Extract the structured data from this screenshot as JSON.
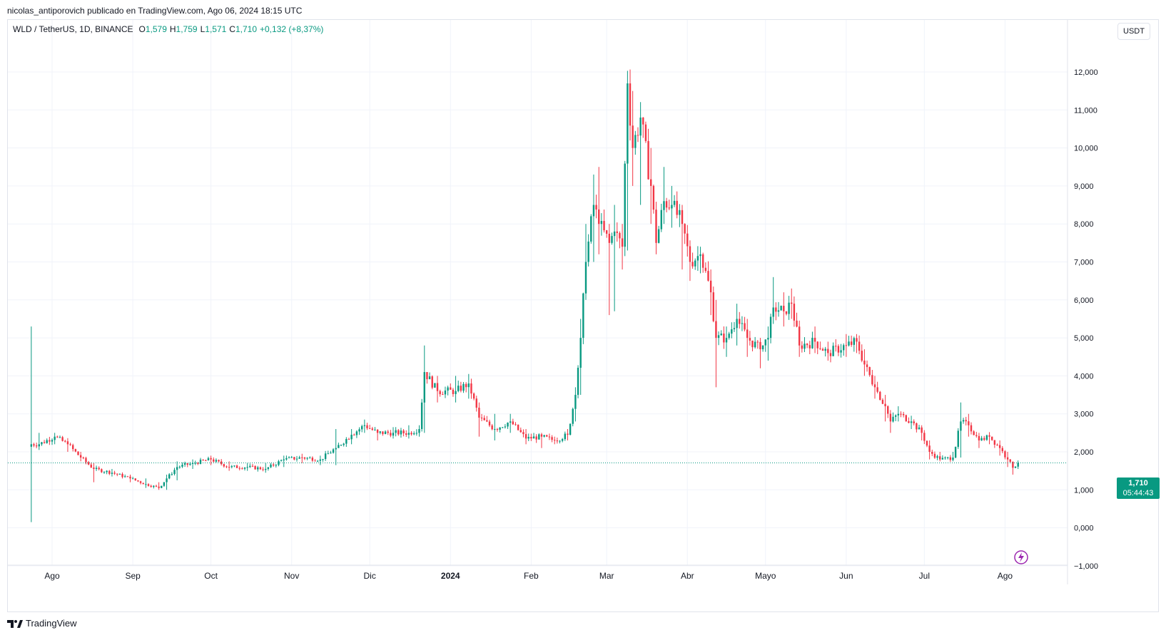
{
  "header": {
    "published_by": "nicolas_antiporovich publicado en TradingView.com, Ago 06, 2024 18:15 UTC"
  },
  "legend": {
    "symbol": "WLD / TetherUS, 1D, BINANCE",
    "open_label": "O",
    "open": "1,579",
    "high_label": "H",
    "high": "1,759",
    "low_label": "L",
    "low": "1,571",
    "close_label": "C",
    "close": "1,710",
    "change": "+0,132 (+8,37%)"
  },
  "currency_button": "USDT",
  "last_price": {
    "value": "1,710",
    "countdown": "05:44:43"
  },
  "footer": {
    "brand": "TradingView"
  },
  "colors": {
    "up": "#089981",
    "down": "#f23645",
    "grid": "#f0f3fa",
    "price_line": "#089981"
  },
  "icons": {
    "footer": "tradingview-logo-icon",
    "event": "lightning-icon"
  },
  "chart_data": {
    "type": "candlestick",
    "symbol": "WLD / TetherUS",
    "interval": "1D",
    "exchange": "BINANCE",
    "currency": "USDT",
    "ylim": [
      -1.0,
      12.5
    ],
    "y_ticks": [
      "12,000",
      "11,000",
      "10,000",
      "9,000",
      "8,000",
      "7,000",
      "6,000",
      "5,000",
      "4,000",
      "3,000",
      "2,000",
      "1,000",
      "0,000",
      "−1,000"
    ],
    "y_tick_values": [
      12,
      11,
      10,
      9,
      8,
      7,
      6,
      5,
      4,
      3,
      2,
      1,
      0,
      -1
    ],
    "x_ticks": [
      "Ago",
      "Sep",
      "Oct",
      "Nov",
      "Dic",
      "2024",
      "Feb",
      "Mar",
      "Abr",
      "Mayo",
      "Jun",
      "Jul",
      "Ago"
    ],
    "x_tick_dates": [
      "2023-08-01",
      "2023-09-01",
      "2023-10-01",
      "2023-11-01",
      "2023-12-01",
      "2024-01-01",
      "2024-02-01",
      "2024-03-01",
      "2024-04-01",
      "2024-05-01",
      "2024-06-01",
      "2024-07-01",
      "2024-08-01"
    ],
    "x_range": [
      "2023-07-15",
      "2024-08-25"
    ],
    "last_close": 1.71,
    "grid": true,
    "close_path": [
      {
        "date": "2023-07-24",
        "close": 2.2,
        "high": 5.3,
        "low": 0.15
      },
      {
        "date": "2023-07-27",
        "close": 2.2,
        "high": 2.5,
        "low": 2.05
      },
      {
        "date": "2023-08-02",
        "close": 2.4,
        "high": 2.5,
        "low": 2.2
      },
      {
        "date": "2023-08-07",
        "close": 2.2,
        "high": 2.35,
        "low": 2.0
      },
      {
        "date": "2023-08-12",
        "close": 1.85,
        "high": 2.0,
        "low": 1.75
      },
      {
        "date": "2023-08-17",
        "close": 1.55,
        "high": 1.7,
        "low": 1.2
      },
      {
        "date": "2023-08-24",
        "close": 1.45,
        "high": 1.55,
        "low": 1.35
      },
      {
        "date": "2023-08-31",
        "close": 1.3,
        "high": 1.4,
        "low": 1.2
      },
      {
        "date": "2023-09-06",
        "close": 1.15,
        "high": 1.3,
        "low": 1.05
      },
      {
        "date": "2023-09-11",
        "close": 1.05,
        "high": 1.2,
        "low": 1.0
      },
      {
        "date": "2023-09-14",
        "close": 1.3,
        "high": 1.4,
        "low": 1.0
      },
      {
        "date": "2023-09-18",
        "close": 1.6,
        "high": 1.75,
        "low": 1.25
      },
      {
        "date": "2023-09-24",
        "close": 1.7,
        "high": 1.8,
        "low": 1.55
      },
      {
        "date": "2023-10-01",
        "close": 1.8,
        "high": 1.9,
        "low": 1.65
      },
      {
        "date": "2023-10-08",
        "close": 1.6,
        "high": 1.75,
        "low": 1.5
      },
      {
        "date": "2023-10-15",
        "close": 1.6,
        "high": 1.7,
        "low": 1.5
      },
      {
        "date": "2023-10-22",
        "close": 1.55,
        "high": 1.7,
        "low": 1.45
      },
      {
        "date": "2023-10-29",
        "close": 1.8,
        "high": 1.9,
        "low": 1.6
      },
      {
        "date": "2023-11-05",
        "close": 1.85,
        "high": 1.95,
        "low": 1.7
      },
      {
        "date": "2023-11-12",
        "close": 1.8,
        "high": 1.9,
        "low": 1.65
      },
      {
        "date": "2023-11-18",
        "close": 2.1,
        "high": 2.6,
        "low": 1.65
      },
      {
        "date": "2023-11-24",
        "close": 2.45,
        "high": 2.6,
        "low": 2.2
      },
      {
        "date": "2023-11-29",
        "close": 2.7,
        "high": 2.85,
        "low": 2.5
      },
      {
        "date": "2023-12-04",
        "close": 2.5,
        "high": 2.6,
        "low": 2.3
      },
      {
        "date": "2023-12-10",
        "close": 2.5,
        "high": 2.65,
        "low": 2.35
      },
      {
        "date": "2023-12-16",
        "close": 2.5,
        "high": 2.7,
        "low": 2.35
      },
      {
        "date": "2023-12-20",
        "close": 2.6,
        "high": 2.7,
        "low": 2.4
      },
      {
        "date": "2023-12-22",
        "close": 4.1,
        "high": 4.8,
        "low": 2.5
      },
      {
        "date": "2023-12-27",
        "close": 3.6,
        "high": 4.0,
        "low": 3.3
      },
      {
        "date": "2024-01-03",
        "close": 3.6,
        "high": 4.0,
        "low": 3.3
      },
      {
        "date": "2024-01-08",
        "close": 3.8,
        "high": 4.05,
        "low": 3.4
      },
      {
        "date": "2024-01-12",
        "close": 2.9,
        "high": 3.3,
        "low": 2.4
      },
      {
        "date": "2024-01-18",
        "close": 2.6,
        "high": 3.0,
        "low": 2.3
      },
      {
        "date": "2024-01-24",
        "close": 2.8,
        "high": 3.0,
        "low": 2.5
      },
      {
        "date": "2024-01-30",
        "close": 2.35,
        "high": 2.6,
        "low": 2.2
      },
      {
        "date": "2024-02-05",
        "close": 2.4,
        "high": 2.5,
        "low": 2.1
      },
      {
        "date": "2024-02-10",
        "close": 2.3,
        "high": 2.4,
        "low": 2.2
      },
      {
        "date": "2024-02-15",
        "close": 2.45,
        "high": 2.6,
        "low": 2.3
      },
      {
        "date": "2024-02-18",
        "close": 3.5,
        "high": 3.7,
        "low": 2.8
      },
      {
        "date": "2024-02-20",
        "close": 5.0,
        "high": 5.5,
        "low": 3.5
      },
      {
        "date": "2024-02-22",
        "close": 7.0,
        "high": 8.0,
        "low": 6.0
      },
      {
        "date": "2024-02-25",
        "close": 8.5,
        "high": 9.3,
        "low": 7.0
      },
      {
        "date": "2024-02-27",
        "close": 8.0,
        "high": 9.5,
        "low": 7.2
      },
      {
        "date": "2024-03-02",
        "close": 7.5,
        "high": 8.0,
        "low": 5.6
      },
      {
        "date": "2024-03-04",
        "close": 7.8,
        "high": 8.5,
        "low": 5.7
      },
      {
        "date": "2024-03-07",
        "close": 7.4,
        "high": 8.0,
        "low": 6.8
      },
      {
        "date": "2024-03-09",
        "close": 11.7,
        "high": 12.0,
        "low": 7.3
      },
      {
        "date": "2024-03-11",
        "close": 10.0,
        "high": 11.5,
        "low": 9.0
      },
      {
        "date": "2024-03-14",
        "close": 10.8,
        "high": 10.9,
        "low": 8.5
      },
      {
        "date": "2024-03-18",
        "close": 9.0,
        "high": 10.0,
        "low": 8.0
      },
      {
        "date": "2024-03-20",
        "close": 7.5,
        "high": 8.5,
        "low": 7.2
      },
      {
        "date": "2024-03-23",
        "close": 8.6,
        "high": 9.5,
        "low": 8.0
      },
      {
        "date": "2024-03-26",
        "close": 8.5,
        "high": 9.0,
        "low": 7.9
      },
      {
        "date": "2024-03-30",
        "close": 8.0,
        "high": 8.5,
        "low": 6.8
      },
      {
        "date": "2024-04-02",
        "close": 7.0,
        "high": 7.5,
        "low": 6.5
      },
      {
        "date": "2024-04-06",
        "close": 7.2,
        "high": 7.4,
        "low": 6.7
      },
      {
        "date": "2024-04-10",
        "close": 6.2,
        "high": 6.8,
        "low": 5.6
      },
      {
        "date": "2024-04-12",
        "close": 5.0,
        "high": 6.0,
        "low": 3.7
      },
      {
        "date": "2024-04-16",
        "close": 5.0,
        "high": 5.3,
        "low": 4.5
      },
      {
        "date": "2024-04-20",
        "close": 5.5,
        "high": 5.9,
        "low": 4.8
      },
      {
        "date": "2024-04-24",
        "close": 5.0,
        "high": 5.5,
        "low": 4.5
      },
      {
        "date": "2024-04-29",
        "close": 4.7,
        "high": 5.0,
        "low": 4.2
      },
      {
        "date": "2024-05-02",
        "close": 5.0,
        "high": 5.3,
        "low": 4.4
      },
      {
        "date": "2024-05-04",
        "close": 5.8,
        "high": 6.6,
        "low": 5.5
      },
      {
        "date": "2024-05-08",
        "close": 5.7,
        "high": 6.2,
        "low": 5.3
      },
      {
        "date": "2024-05-11",
        "close": 5.9,
        "high": 6.3,
        "low": 5.5
      },
      {
        "date": "2024-05-14",
        "close": 4.8,
        "high": 5.3,
        "low": 4.5
      },
      {
        "date": "2024-05-20",
        "close": 4.9,
        "high": 5.3,
        "low": 4.6
      },
      {
        "date": "2024-05-25",
        "close": 4.6,
        "high": 4.9,
        "low": 4.4
      },
      {
        "date": "2024-06-01",
        "close": 4.8,
        "high": 5.1,
        "low": 4.5
      },
      {
        "date": "2024-06-05",
        "close": 4.9,
        "high": 5.1,
        "low": 4.6
      },
      {
        "date": "2024-06-08",
        "close": 4.3,
        "high": 4.7,
        "low": 4.0
      },
      {
        "date": "2024-06-12",
        "close": 3.7,
        "high": 4.0,
        "low": 3.4
      },
      {
        "date": "2024-06-16",
        "close": 3.2,
        "high": 3.5,
        "low": 2.8
      },
      {
        "date": "2024-06-18",
        "close": 2.8,
        "high": 3.1,
        "low": 2.5
      },
      {
        "date": "2024-06-21",
        "close": 3.0,
        "high": 3.2,
        "low": 2.8
      },
      {
        "date": "2024-06-26",
        "close": 2.8,
        "high": 2.95,
        "low": 2.6
      },
      {
        "date": "2024-06-30",
        "close": 2.5,
        "high": 2.7,
        "low": 2.3
      },
      {
        "date": "2024-07-03",
        "close": 2.0,
        "high": 2.3,
        "low": 1.8
      },
      {
        "date": "2024-07-07",
        "close": 1.8,
        "high": 2.0,
        "low": 1.75
      },
      {
        "date": "2024-07-12",
        "close": 1.85,
        "high": 2.0,
        "low": 1.75
      },
      {
        "date": "2024-07-15",
        "close": 2.8,
        "high": 3.3,
        "low": 1.85
      },
      {
        "date": "2024-07-18",
        "close": 2.7,
        "high": 3.0,
        "low": 2.4
      },
      {
        "date": "2024-07-22",
        "close": 2.3,
        "high": 2.5,
        "low": 2.1
      },
      {
        "date": "2024-07-26",
        "close": 2.4,
        "high": 2.5,
        "low": 2.2
      },
      {
        "date": "2024-07-30",
        "close": 2.1,
        "high": 2.3,
        "low": 1.9
      },
      {
        "date": "2024-08-02",
        "close": 1.8,
        "high": 2.0,
        "low": 1.6
      },
      {
        "date": "2024-08-04",
        "close": 1.58,
        "high": 1.75,
        "low": 1.4
      },
      {
        "date": "2024-08-06",
        "close": 1.71,
        "high": 1.76,
        "low": 1.57
      }
    ]
  }
}
